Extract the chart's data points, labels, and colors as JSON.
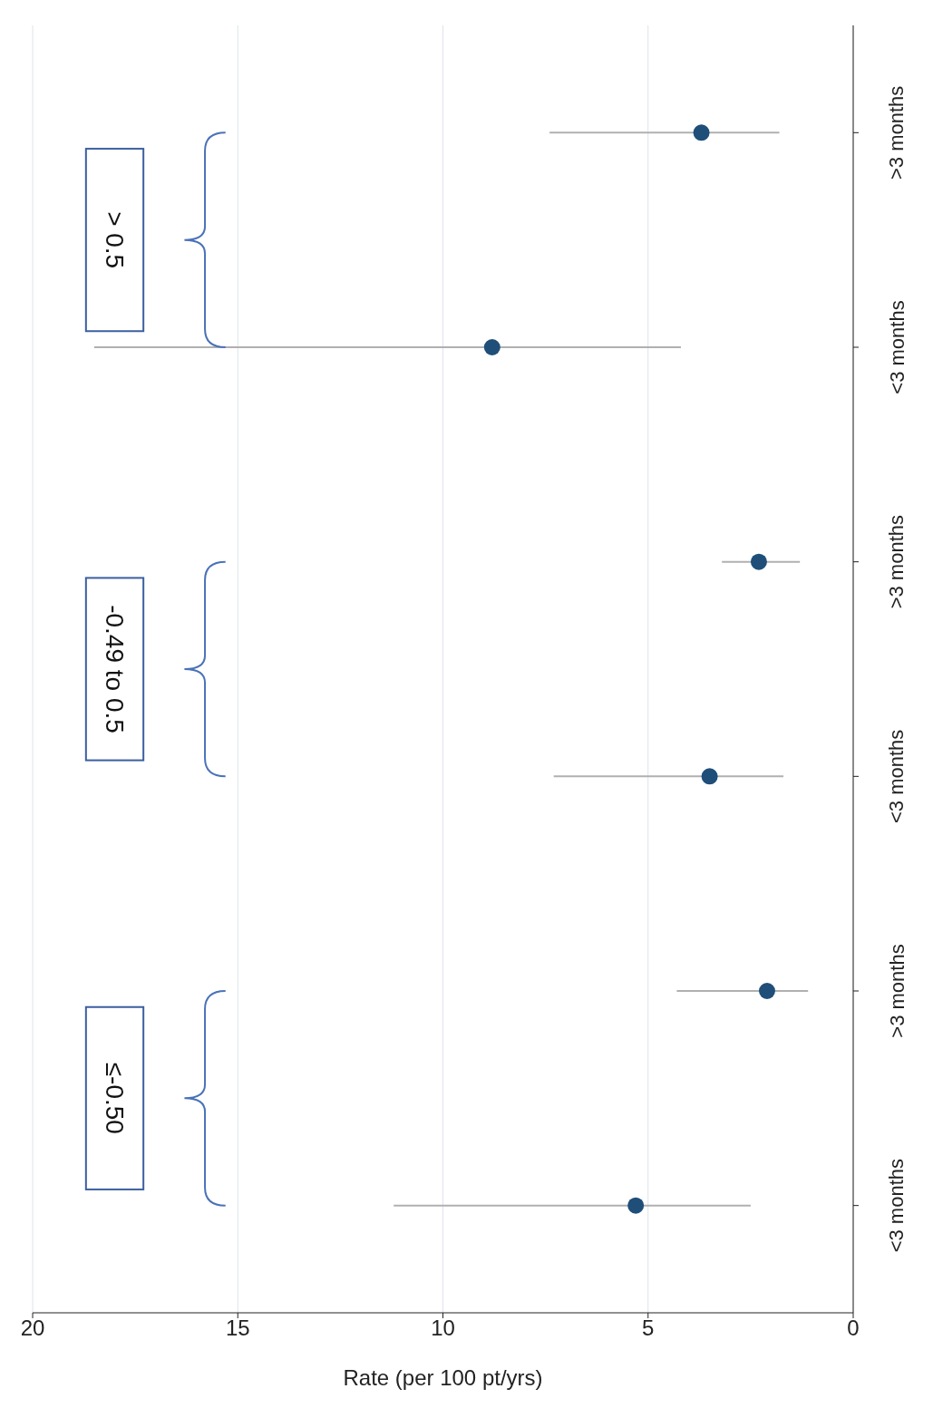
{
  "chart_data": {
    "type": "scatter",
    "orientation": "horizontal",
    "xlabel": "Rate (per 100 pt/yrs)",
    "categories": [
      ">3 months",
      "<3 months",
      ">3 months",
      "<3 months",
      ">3 months",
      "<3 months"
    ],
    "values": [
      3.7,
      8.8,
      2.3,
      3.5,
      2.1,
      5.3
    ],
    "errors": [
      [
        1.8,
        7.4
      ],
      [
        4.2,
        18.5
      ],
      [
        1.3,
        3.2
      ],
      [
        1.7,
        7.3
      ],
      [
        1.1,
        4.3
      ],
      [
        2.5,
        11.2
      ]
    ],
    "color": "#1f4e79",
    "marker": "circle",
    "xlim": [
      20,
      0
    ],
    "xticks": [
      0,
      5,
      10,
      15,
      20
    ],
    "grid": "x",
    "annotations": [
      "> 0.5",
      "-0.49 to 0.5",
      "≤-0.50"
    ]
  }
}
